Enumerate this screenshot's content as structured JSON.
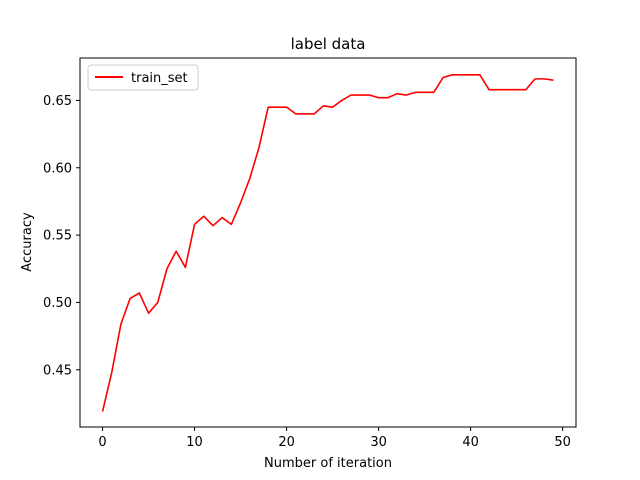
{
  "chart_data": {
    "type": "line",
    "title": "label data",
    "xlabel": "Number of iteration",
    "ylabel": "Accuracy",
    "xlim": [
      -2.45,
      51.45
    ],
    "ylim": [
      0.4075,
      0.6815
    ],
    "xticks": [
      0,
      10,
      20,
      30,
      40,
      50
    ],
    "yticks": [
      0.45,
      0.5,
      0.55,
      0.6,
      0.65
    ],
    "ytick_labels": [
      "0.45",
      "0.50",
      "0.55",
      "0.60",
      "0.65"
    ],
    "legend_position": "upper-left",
    "grid": false,
    "series": [
      {
        "name": "train_set",
        "color": "#ff0000",
        "x": [
          0,
          1,
          2,
          3,
          4,
          5,
          6,
          7,
          8,
          9,
          10,
          11,
          12,
          13,
          14,
          15,
          16,
          17,
          18,
          19,
          20,
          21,
          22,
          23,
          24,
          25,
          26,
          27,
          28,
          29,
          30,
          31,
          32,
          33,
          34,
          35,
          36,
          37,
          38,
          39,
          40,
          41,
          42,
          43,
          44,
          45,
          46,
          47,
          48,
          49
        ],
        "y": [
          0.419,
          0.448,
          0.484,
          0.503,
          0.507,
          0.492,
          0.5,
          0.525,
          0.538,
          0.526,
          0.558,
          0.564,
          0.557,
          0.563,
          0.558,
          0.574,
          0.592,
          0.615,
          0.645,
          0.645,
          0.645,
          0.64,
          0.64,
          0.64,
          0.646,
          0.645,
          0.65,
          0.654,
          0.654,
          0.654,
          0.652,
          0.652,
          0.655,
          0.654,
          0.656,
          0.656,
          0.656,
          0.667,
          0.669,
          0.669,
          0.669,
          0.669,
          0.658,
          0.658,
          0.658,
          0.658,
          0.658,
          0.666,
          0.666,
          0.665
        ]
      }
    ]
  }
}
